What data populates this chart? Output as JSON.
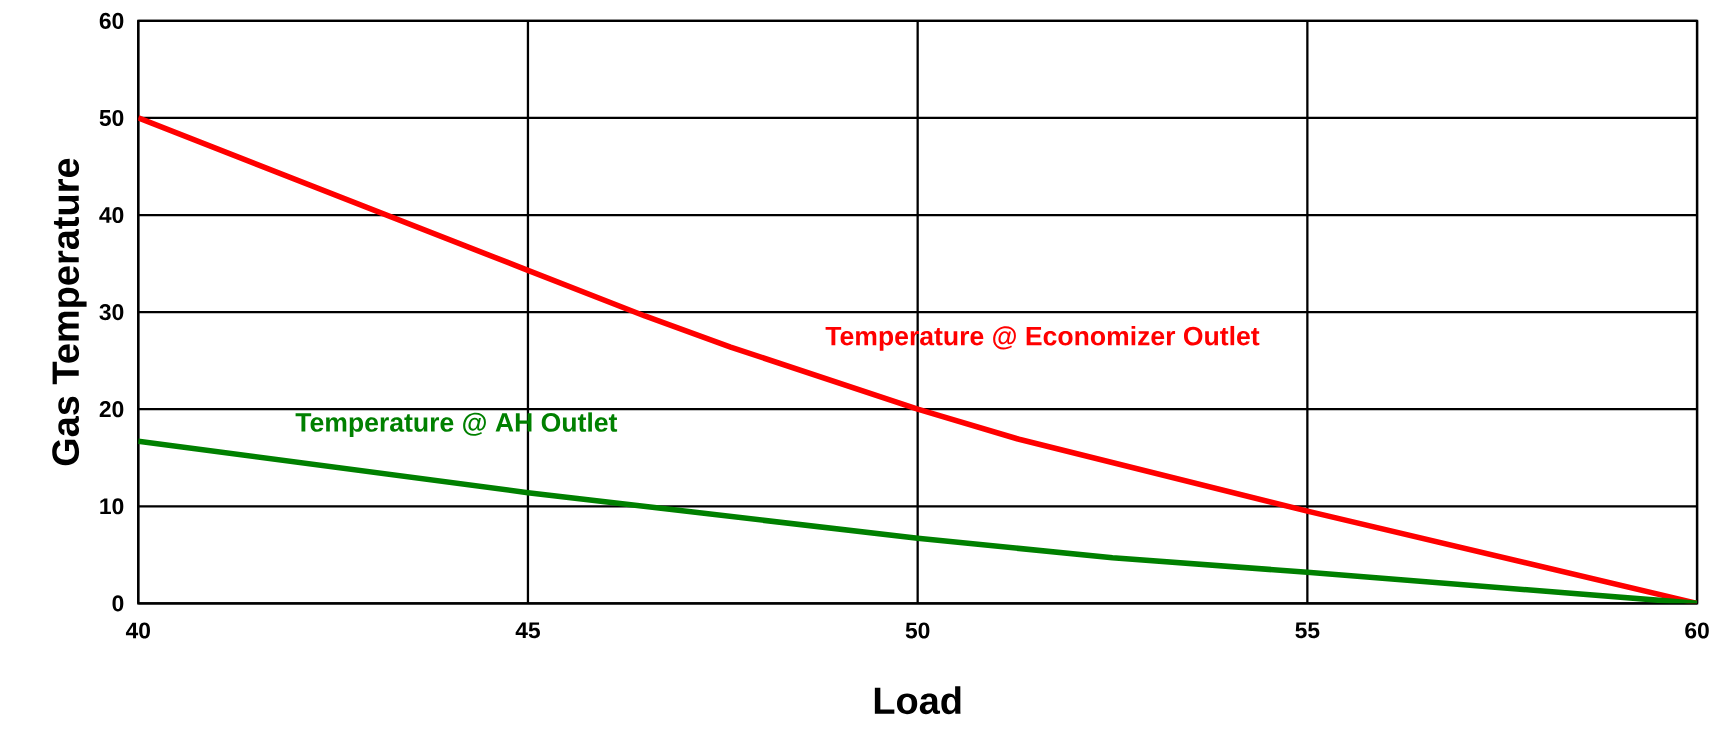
{
  "chart_data": {
    "type": "line",
    "xlabel": "Load",
    "ylabel": "Gas Temperature",
    "xlim": [
      40,
      60
    ],
    "xticks": [
      40,
      45,
      50,
      55,
      60
    ],
    "ylim": [
      0,
      60
    ],
    "yticks": [
      0,
      10,
      20,
      30,
      40,
      50,
      60
    ],
    "grid": true,
    "legend": false,
    "marker": "none",
    "line_style": "solid",
    "series": [
      {
        "name": "Temperature @ Economizer Outlet",
        "color": "#ff0000",
        "x": [
          40,
          45,
          46.5,
          47.6,
          50,
          51.3,
          55,
          60
        ],
        "values": [
          50,
          34.3,
          29.6,
          26.4,
          20,
          16.9,
          9.5,
          0
        ]
      },
      {
        "name": "Temperature @ AH Outlet",
        "color": "#008000",
        "x": [
          40,
          45,
          50,
          52.5,
          55,
          60
        ],
        "values": [
          16.7,
          11.4,
          6.7,
          4.7,
          3.2,
          0
        ]
      }
    ]
  }
}
